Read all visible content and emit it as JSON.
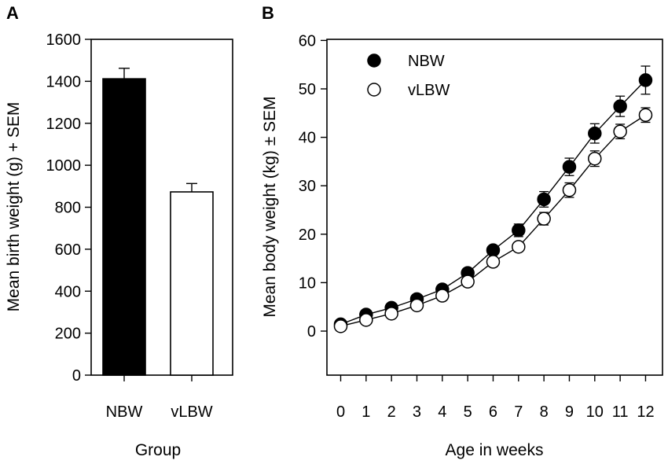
{
  "chart_data": [
    {
      "panel": "A",
      "type": "bar",
      "title": "",
      "categories": [
        "NBW",
        "vLBW"
      ],
      "values": [
        1412,
        873
      ],
      "errors": [
        50,
        40
      ],
      "bar_colors": [
        "#000000",
        "#ffffff"
      ],
      "xlabel": "Group",
      "ylabel": "Mean birth weight (g) + SEM",
      "ylim": [
        0,
        1600
      ],
      "yticks": [
        0,
        200,
        400,
        600,
        800,
        1000,
        1200,
        1400,
        1600
      ],
      "grid": false
    },
    {
      "panel": "B",
      "type": "line",
      "title": "",
      "x": [
        0,
        1,
        2,
        3,
        4,
        5,
        6,
        7,
        8,
        9,
        10,
        11,
        12
      ],
      "series": [
        {
          "name": "NBW",
          "marker": "filled-circle",
          "color": "#000000",
          "values": [
            1.4,
            3.4,
            4.8,
            6.6,
            8.6,
            12.0,
            16.7,
            20.8,
            27.2,
            33.9,
            40.8,
            46.4,
            51.8
          ],
          "errors": [
            0.3,
            0.4,
            0.5,
            0.6,
            0.7,
            0.9,
            1.0,
            1.3,
            1.6,
            1.8,
            2.0,
            2.1,
            2.9
          ]
        },
        {
          "name": "vLBW",
          "marker": "open-circle",
          "color": "#000000",
          "values": [
            1.0,
            2.3,
            3.6,
            5.3,
            7.3,
            10.2,
            14.3,
            17.4,
            23.2,
            29.1,
            35.6,
            41.2,
            44.6
          ],
          "errors": [
            0.2,
            0.3,
            0.4,
            0.5,
            0.6,
            0.7,
            0.8,
            1.0,
            1.3,
            1.5,
            1.6,
            1.5,
            1.5
          ]
        }
      ],
      "xlabel": "Age in weeks",
      "ylabel": "Mean body weight (kg) ± SEM",
      "xlim": [
        -0.5,
        12.5
      ],
      "ylim": [
        -8,
        60
      ],
      "yticks": [
        0,
        10,
        20,
        30,
        40,
        50,
        60
      ],
      "xticks": [
        0,
        1,
        2,
        3,
        4,
        5,
        6,
        7,
        8,
        9,
        10,
        11,
        12
      ],
      "legend": "top-left",
      "grid": false
    }
  ],
  "panels": {
    "a_label": "A",
    "b_label": "B"
  }
}
